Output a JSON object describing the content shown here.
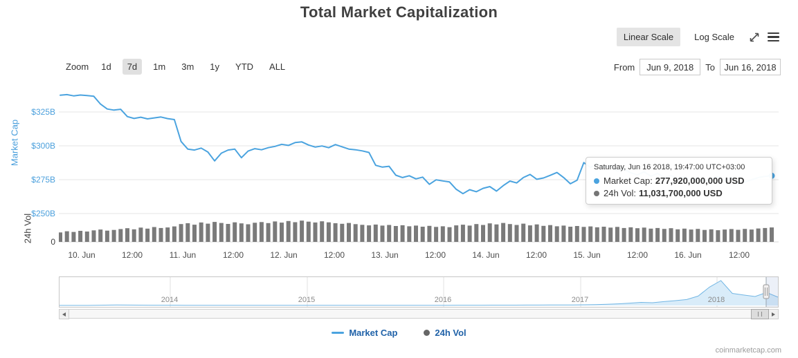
{
  "header": {
    "title": "Total Market Capitalization",
    "linear_scale": "Linear Scale",
    "log_scale": "Log Scale",
    "selected_scale": "Linear Scale"
  },
  "icons": {
    "fullscreen": "expand-arrows",
    "menu": "hamburger"
  },
  "toolbar": {
    "zoom_label": "Zoom",
    "zoom_buttons": [
      "1d",
      "7d",
      "1m",
      "3m",
      "1y",
      "YTD",
      "ALL"
    ],
    "selected_zoom": "7d",
    "from_label": "From",
    "from_value": "Jun 9, 2018",
    "to_label": "To",
    "to_value": "Jun 16, 2018"
  },
  "tooltip": {
    "datetime": "Saturday, Jun 16 2018, 19:47:00 UTC+03:00",
    "market_cap_label": "Market Cap:",
    "market_cap_value": "277,920,000,000 USD",
    "vol_label": "24h Vol:",
    "vol_value": "11,031,700,000 USD"
  },
  "legend": {
    "market_cap": "Market Cap",
    "vol": "24h Vol"
  },
  "watermark": "coinmarketcap.com",
  "chart_data": {
    "type": "line",
    "title": "Total Market Capitalization",
    "y_axis": {
      "title": "Market Cap",
      "tick_labels": [
        "$325B",
        "$300B",
        "$275B",
        "$250B"
      ],
      "tick_values_billion": [
        325,
        300,
        275,
        250
      ],
      "color": "#4a9fdc"
    },
    "volume_axis": {
      "title": "24h Vol",
      "tick_labels": [
        "0"
      ]
    },
    "x_axis": {
      "tick_labels": [
        "10. Jun",
        "12:00",
        "11. Jun",
        "12:00",
        "12. Jun",
        "12:00",
        "13. Jun",
        "12:00",
        "14. Jun",
        "12:00",
        "15. Jun",
        "12:00",
        "16. Jun",
        "12:00"
      ]
    },
    "series": [
      {
        "name": "Market Cap",
        "type": "line",
        "unit": "billion USD",
        "color": "#4aa3df",
        "values": [
          337.4,
          337.8,
          336.9,
          337.5,
          337.1,
          336.6,
          330.8,
          327.2,
          326.4,
          327.0,
          321.6,
          320.2,
          321.1,
          319.9,
          320.6,
          321.3,
          320.1,
          319.4,
          303.2,
          297.6,
          296.9,
          298.3,
          295.4,
          288.9,
          294.6,
          296.9,
          297.6,
          291.2,
          296.1,
          297.9,
          297.1,
          298.6,
          299.6,
          301.1,
          300.3,
          302.4,
          302.9,
          300.6,
          299.1,
          299.9,
          298.6,
          300.9,
          299.3,
          297.6,
          297.1,
          296.3,
          295.1,
          285.6,
          284.3,
          284.9,
          278.3,
          276.6,
          277.9,
          275.6,
          276.9,
          271.6,
          274.9,
          274.1,
          273.3,
          267.9,
          264.7,
          267.6,
          266.1,
          268.6,
          269.9,
          266.6,
          270.6,
          274.0,
          272.6,
          276.6,
          278.9,
          275.3,
          276.3,
          278.2,
          280.3,
          276.6,
          272.0,
          274.6,
          287.6,
          284.1,
          286.9,
          284.0,
          285.6,
          281.6,
          282.9,
          280.1,
          278.6,
          280.8,
          277.6,
          279.7,
          276.7,
          278.1,
          275.6,
          277.3,
          274.9,
          276.1,
          273.6,
          275.9,
          277.1,
          274.3,
          276.6,
          271.9,
          273.1,
          275.0,
          276.6,
          277.5,
          277.92
        ]
      },
      {
        "name": "24h Vol",
        "type": "column",
        "unit": "billion USD",
        "color": "#7a7a7a",
        "values": [
          7.2,
          8.1,
          7.6,
          8.4,
          7.9,
          8.8,
          9.4,
          8.6,
          9.1,
          9.8,
          10.4,
          9.6,
          10.9,
          10.1,
          11.3,
          10.6,
          11.0,
          11.8,
          13.6,
          14.2,
          13.1,
          14.8,
          13.9,
          15.2,
          14.4,
          13.7,
          14.9,
          14.1,
          13.4,
          14.6,
          15.1,
          14.3,
          15.6,
          14.7,
          15.9,
          15.0,
          16.2,
          15.4,
          14.8,
          15.7,
          14.9,
          14.2,
          13.8,
          14.4,
          13.5,
          13.0,
          12.6,
          13.2,
          12.4,
          12.9,
          12.1,
          12.7,
          11.9,
          12.4,
          11.6,
          12.2,
          11.4,
          11.9,
          11.2,
          12.6,
          13.1,
          12.4,
          13.6,
          12.9,
          14.1,
          13.3,
          14.4,
          13.6,
          12.9,
          13.9,
          12.6,
          13.3,
          12.2,
          12.8,
          11.9,
          12.4,
          11.6,
          12.1,
          11.4,
          11.8,
          11.1,
          11.6,
          10.9,
          11.4,
          10.6,
          11.1,
          10.4,
          10.9,
          10.1,
          10.6,
          9.9,
          10.4,
          9.6,
          10.1,
          9.4,
          9.9,
          9.1,
          9.6,
          8.9,
          9.4,
          9.8,
          9.2,
          9.9,
          9.4,
          10.2,
          10.6,
          11.0
        ]
      }
    ],
    "highlighted_point": {
      "datetime": "Saturday, Jun 16 2018, 19:47:00 UTC+03:00",
      "market_cap_usd": "277,920,000,000",
      "vol_usd": "11,031,700,000"
    },
    "navigator": {
      "type": "area",
      "color": "#72b6e4",
      "fill": "#d9ecf9",
      "unit": "billion USD",
      "x_tick_labels": [
        "2014",
        "2015",
        "2016",
        "2017",
        "2018"
      ],
      "y_range_billion": [
        0,
        830
      ],
      "values": [
        1.4,
        1.2,
        1.3,
        4.5,
        10.8,
        15.6,
        13.1,
        11.2,
        9.6,
        8.9,
        8.2,
        7.6,
        7.0,
        6.5,
        6.0,
        5.5,
        5.1,
        4.7,
        4.4,
        4.2,
        4.0,
        4.2,
        4.4,
        4.1,
        4.3,
        4.6,
        4.4,
        4.8,
        5.0,
        5.3,
        5.7,
        6.1,
        6.6,
        7.2,
        7.8,
        8.4,
        9.2,
        10.1,
        10.8,
        11.6,
        12.3,
        13.2,
        14.1,
        15.3,
        16.8,
        18.4,
        22.6,
        28.4,
        38.2,
        55.6,
        78.4,
        102.6,
        92.4,
        128.6,
        162.4,
        198.2,
        312.6,
        612.6,
        830.0,
        402.4,
        348.2,
        298.6,
        432.4,
        278.0
      ]
    }
  }
}
